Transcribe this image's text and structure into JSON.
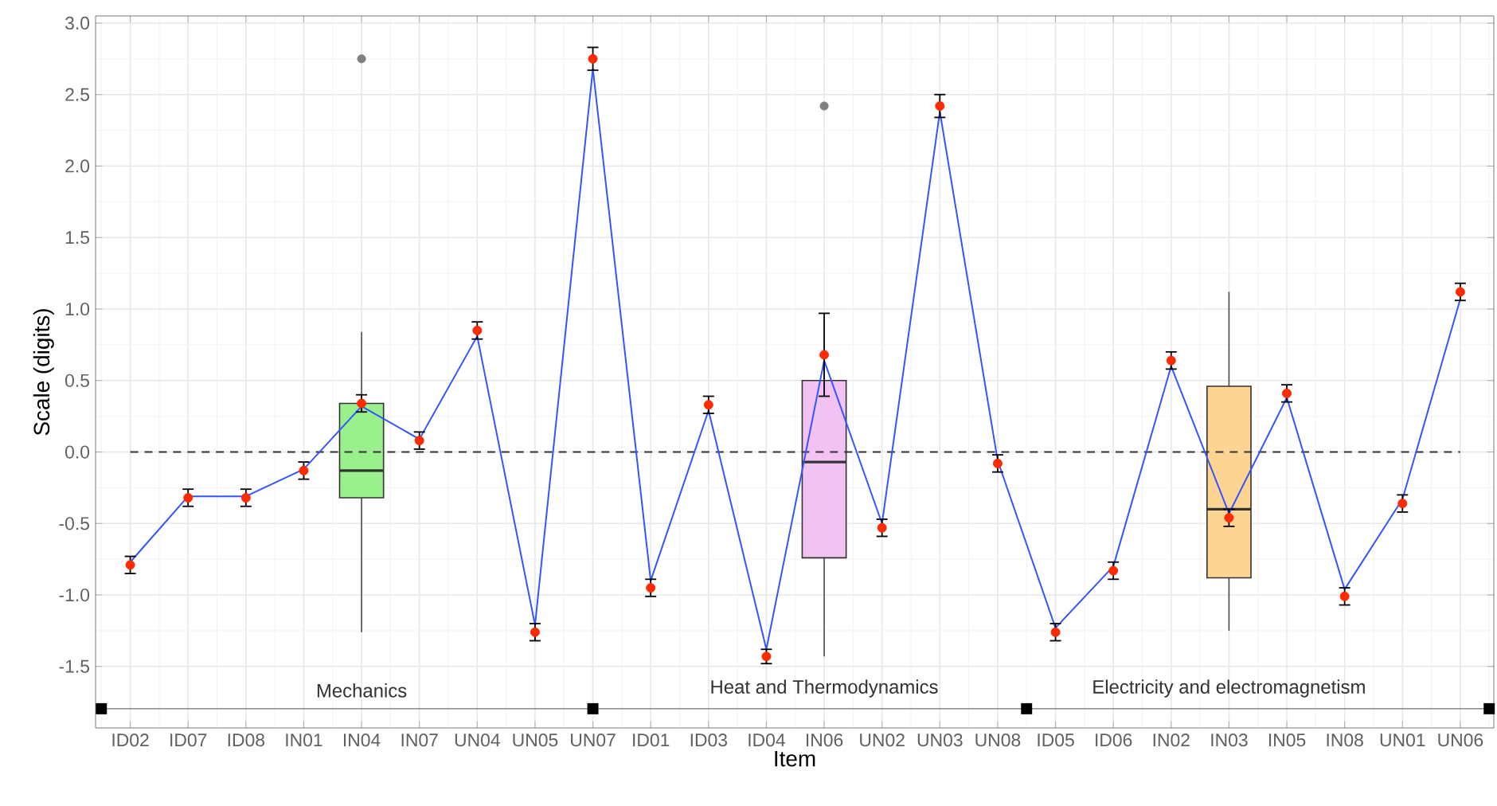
{
  "chart_data": {
    "type": "line",
    "xlabel": "Item",
    "ylabel": "Scale (digits)",
    "categories": [
      "ID02",
      "ID07",
      "ID08",
      "IN01",
      "IN04",
      "IN07",
      "UN04",
      "UN05",
      "UN07",
      "ID01",
      "ID03",
      "ID04",
      "IN06",
      "UN02",
      "UN03",
      "UN08",
      "ID05",
      "ID06",
      "IN02",
      "IN03",
      "IN05",
      "IN08",
      "UN01",
      "UN06"
    ],
    "ylim": [
      -1.93,
      3.05
    ],
    "yticks": [
      {
        "value": -1.5,
        "label": "-1.5"
      },
      {
        "value": -1.0,
        "label": "-1.0"
      },
      -0.5,
      {
        "value": 0,
        "label": "0.0"
      },
      0.5,
      {
        "value": 1,
        "label": "1.0"
      },
      1.5,
      {
        "value": 2,
        "label": "2.0"
      },
      2.5,
      {
        "value": 3,
        "label": "3.0"
      }
    ],
    "grid": true,
    "series": [
      {
        "type": "box",
        "colors": [
          null,
          null,
          null,
          null,
          "#99f08c",
          null,
          null,
          null,
          null,
          null,
          null,
          null,
          "#f2c2f2",
          null,
          null,
          null,
          null,
          null,
          null,
          "#fed493",
          null,
          null,
          null,
          null
        ],
        "boxes": [
          null,
          null,
          null,
          null,
          {
            "low": -1.26,
            "q1": -0.32,
            "median": -0.13,
            "q3": 0.34,
            "high": 0.84,
            "outliers": [
              2.75
            ]
          },
          null,
          null,
          null,
          null,
          null,
          null,
          null,
          {
            "low": -1.43,
            "q1": -0.74,
            "median": -0.07,
            "q3": 0.5,
            "high": 0.68,
            "outliers": [
              2.42
            ]
          },
          null,
          null,
          null,
          null,
          null,
          null,
          {
            "low": -1.25,
            "q1": -0.88,
            "median": -0.4,
            "q3": 0.46,
            "high": 1.12
          },
          null,
          null,
          null,
          null
        ]
      },
      {
        "color": "#3355ff",
        "values": [
          -0.77,
          -0.31,
          -0.31,
          -0.12,
          0.32,
          0.09,
          0.81,
          -1.21,
          2.68,
          -0.9,
          0.29,
          -1.38,
          0.64,
          -0.5,
          2.38,
          -0.06,
          -1.23,
          -0.8,
          0.6,
          -0.43,
          0.38,
          -0.96,
          -0.33,
          1.07
        ]
      },
      {
        "type": "scatter",
        "color": "#ff2a00",
        "marker": "circle",
        "values": [
          -0.79,
          -0.32,
          -0.32,
          -0.13,
          0.34,
          0.08,
          0.85,
          -1.26,
          2.75,
          -0.95,
          0.33,
          -1.43,
          0.68,
          -0.53,
          2.42,
          -0.08,
          -1.26,
          -0.83,
          0.64,
          -0.46,
          0.41,
          -1.01,
          -0.36,
          1.12
        ],
        "errors": [
          0.06,
          0.06,
          0.06,
          0.06,
          0.06,
          0.06,
          0.06,
          0.06,
          0.08,
          0.06,
          0.06,
          0.05,
          [
            0.39,
            0.97
          ],
          0.06,
          0.08,
          0.06,
          0.06,
          0.06,
          0.06,
          0.06,
          0.06,
          0.06,
          0.06,
          0.06
        ]
      }
    ],
    "ref_lines": [
      {
        "axis": "y",
        "value": 0,
        "color": "#333333",
        "line_style": "dashed"
      }
    ],
    "annotations": [
      "Mechanics",
      "Heat and Thermodynamics",
      "Electricity and electromagnetism"
    ]
  }
}
